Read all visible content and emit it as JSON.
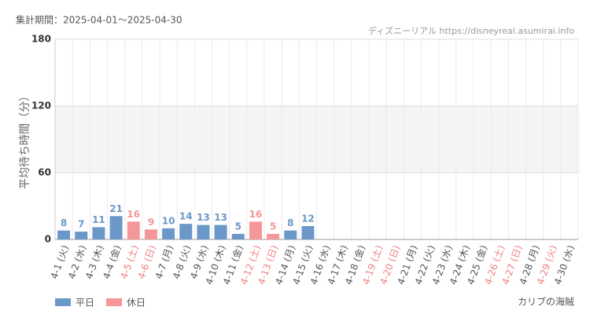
{
  "chart_data": {
    "type": "bar",
    "subtitle": "集計期間：2025-04-01～2025-04-30",
    "source": "ディズニーリアル https://disneyreal.asumirai.info",
    "title": "カリブの海賊",
    "y_label": "平均待ち時間（分）",
    "categories": [
      "4-1 (火)",
      "4-2 (水)",
      "4-3 (木)",
      "4-4 (金)",
      "4-5 (土)",
      "4-6 (日)",
      "4-7 (月)",
      "4-8 (火)",
      "4-9 (水)",
      "4-10 (木)",
      "4-11 (金)",
      "4-12 (土)",
      "4-13 (日)",
      "4-14 (月)",
      "4-15 (火)",
      "4-16 (水)",
      "4-17 (木)",
      "4-18 (金)",
      "4-19 (土)",
      "4-20 (日)",
      "4-21 (月)",
      "4-22 (火)",
      "4-23 (水)",
      "4-24 (木)",
      "4-25 (金)",
      "4-26 (土)",
      "4-27 (日)",
      "4-28 (月)",
      "4-29 (火)",
      "4-30 (水)"
    ],
    "category_colors": [
      "#555555",
      "#555555",
      "#555555",
      "#555555",
      "#f08080",
      "#f08080",
      "#555555",
      "#555555",
      "#555555",
      "#555555",
      "#555555",
      "#f08080",
      "#f08080",
      "#555555",
      "#555555",
      "#555555",
      "#555555",
      "#555555",
      "#f08080",
      "#f08080",
      "#555555",
      "#555555",
      "#555555",
      "#555555",
      "#555555",
      "#f08080",
      "#f08080",
      "#555555",
      "#f08080",
      "#555555"
    ],
    "series": [
      {
        "name": "平日",
        "color": "#6b98c8",
        "values": [
          8,
          7,
          11,
          21,
          null,
          null,
          10,
          14,
          13,
          13,
          5,
          null,
          null,
          8,
          12,
          null,
          null,
          null,
          null,
          null,
          null,
          null,
          null,
          null,
          null,
          null,
          null,
          null,
          null,
          null
        ]
      },
      {
        "name": "休日",
        "color": "#f5969a",
        "values": [
          null,
          null,
          null,
          null,
          16,
          9,
          null,
          null,
          null,
          null,
          null,
          16,
          5,
          null,
          null,
          null,
          null,
          null,
          null,
          null,
          null,
          null,
          null,
          null,
          null,
          null,
          null,
          null,
          null,
          null
        ]
      }
    ],
    "ylim": [
      0,
      180
    ],
    "yticks": [
      0,
      60,
      120,
      180
    ],
    "shaded_band": [
      60,
      120
    ],
    "grid": true,
    "legend": "bottom-left"
  }
}
